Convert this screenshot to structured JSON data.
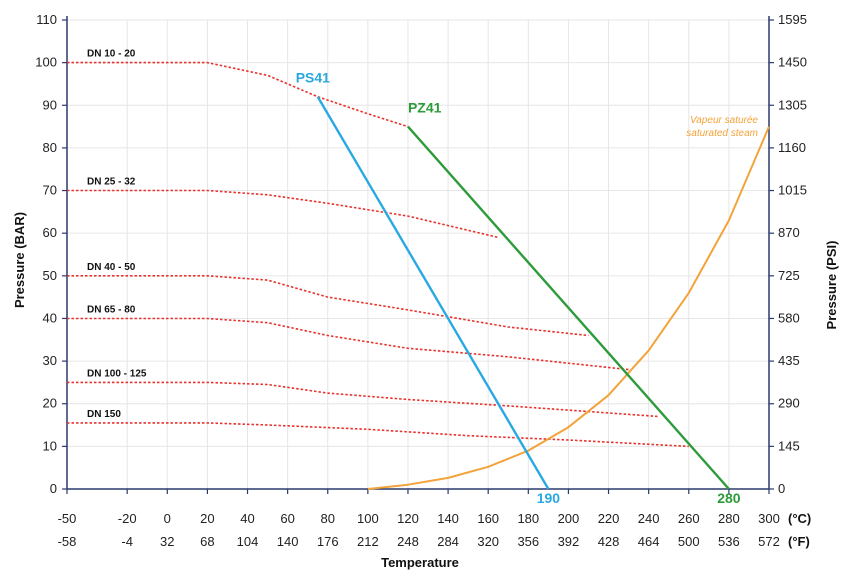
{
  "chart_data": {
    "type": "line",
    "xlabel": "Temperature",
    "ylabel_left": "Pressure (BAR)",
    "ylabel_right": "Pressure (PSI)",
    "x_unit_c": "(°C)",
    "x_unit_f": "(°F)",
    "xlim": [
      -50,
      300
    ],
    "ylim": [
      0,
      110
    ],
    "x_ticks_c": [
      "-50",
      "-20",
      "0",
      "20",
      "40",
      "60",
      "80",
      "100",
      "120",
      "140",
      "160",
      "180",
      "200",
      "220",
      "240",
      "260",
      "280",
      "300"
    ],
    "x_ticks_f": [
      "-58",
      "-4",
      "32",
      "68",
      "104",
      "140",
      "176",
      "212",
      "248",
      "284",
      "320",
      "356",
      "392",
      "428",
      "464",
      "500",
      "536",
      "572"
    ],
    "y_ticks_left": [
      "0",
      "10",
      "20",
      "30",
      "40",
      "50",
      "60",
      "70",
      "80",
      "90",
      "100",
      "110"
    ],
    "y_ticks_right": [
      "0",
      "145",
      "290",
      "435",
      "580",
      "725",
      "870",
      "1015",
      "1160",
      "1305",
      "1450",
      "1595"
    ],
    "colors": {
      "dn_curves": "#e8322c",
      "ps41": "#29a9e1",
      "pz41": "#2e9b3a",
      "steam": "#f2a33a",
      "axis": "#2a3a6b"
    },
    "dn_curves": [
      {
        "name": "DN 10 - 20",
        "points": [
          [
            -50,
            100
          ],
          [
            20,
            100
          ],
          [
            50,
            97
          ],
          [
            75,
            92
          ],
          [
            100,
            88
          ],
          [
            120,
            85
          ]
        ]
      },
      {
        "name": "DN 25 - 32",
        "points": [
          [
            -50,
            70
          ],
          [
            20,
            70
          ],
          [
            50,
            69
          ],
          [
            80,
            67
          ],
          [
            120,
            64
          ],
          [
            165,
            59
          ]
        ]
      },
      {
        "name": "DN 40 - 50",
        "points": [
          [
            -50,
            50
          ],
          [
            20,
            50
          ],
          [
            50,
            49
          ],
          [
            80,
            45
          ],
          [
            120,
            42
          ],
          [
            170,
            38
          ],
          [
            210,
            36
          ]
        ]
      },
      {
        "name": "DN 65 - 80",
        "points": [
          [
            -50,
            40
          ],
          [
            20,
            40
          ],
          [
            50,
            39
          ],
          [
            80,
            36
          ],
          [
            120,
            33
          ],
          [
            170,
            31
          ],
          [
            230,
            28
          ]
        ]
      },
      {
        "name": "DN 100 - 125",
        "points": [
          [
            -50,
            25
          ],
          [
            20,
            25
          ],
          [
            50,
            24.5
          ],
          [
            80,
            22.5
          ],
          [
            120,
            21
          ],
          [
            170,
            19.5
          ],
          [
            245,
            17
          ]
        ]
      },
      {
        "name": "DN 150",
        "points": [
          [
            -50,
            15.5
          ],
          [
            20,
            15.5
          ],
          [
            50,
            15
          ],
          [
            100,
            14
          ],
          [
            150,
            12.5
          ],
          [
            200,
            11.5
          ],
          [
            260,
            10
          ]
        ]
      }
    ],
    "series": [
      {
        "name": "PS41",
        "points": [
          [
            75,
            92
          ],
          [
            190,
            0
          ]
        ],
        "end_label": "190"
      },
      {
        "name": "PZ41",
        "points": [
          [
            120,
            85
          ],
          [
            280,
            0
          ]
        ],
        "end_label": "280"
      }
    ],
    "steam_curve": {
      "name_fr": "Vapeur saturée",
      "name_en": "saturated steam",
      "points": [
        [
          100,
          0
        ],
        [
          120,
          1
        ],
        [
          140,
          2.6
        ],
        [
          160,
          5.2
        ],
        [
          180,
          9
        ],
        [
          200,
          14.5
        ],
        [
          220,
          22
        ],
        [
          240,
          32.5
        ],
        [
          260,
          46
        ],
        [
          280,
          63
        ],
        [
          300,
          85
        ]
      ]
    }
  }
}
